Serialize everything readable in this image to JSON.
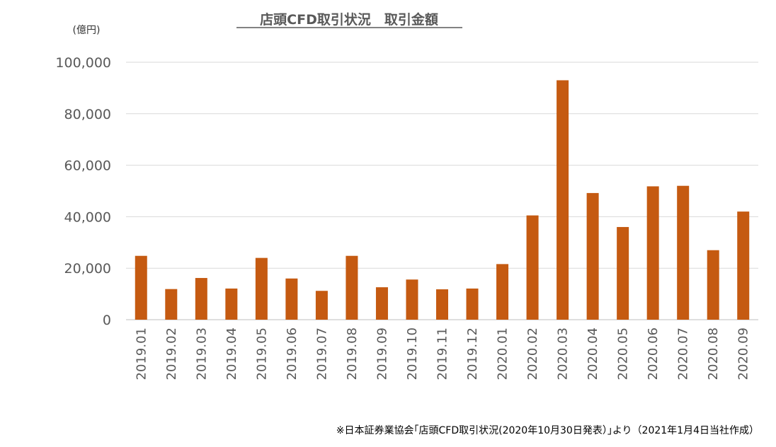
{
  "chart_data": {
    "type": "bar",
    "title": "店頭CFD取引状況　取引金額",
    "unit_label": "(億円)",
    "xlabel": "",
    "ylabel": "",
    "ylim": [
      0,
      100000
    ],
    "y_ticks": [
      "0",
      "20,000",
      "40,000",
      "60,000",
      "80,000",
      "100,000"
    ],
    "y_tick_values": [
      0,
      20000,
      40000,
      60000,
      80000,
      100000
    ],
    "grid": true,
    "legend": "none",
    "bar_color": "#c55a11",
    "categories": [
      "2019.01",
      "2019.02",
      "2019.03",
      "2019.04",
      "2019.05",
      "2019.06",
      "2019.07",
      "2019.08",
      "2019.09",
      "2019.10",
      "2019.11",
      "2019.12",
      "2020.01",
      "2020.02",
      "2020.03",
      "2020.04",
      "2020.05",
      "2020.06",
      "2020.07",
      "2020.08",
      "2020.09"
    ],
    "values": [
      24800,
      11900,
      16200,
      12100,
      24000,
      16000,
      11200,
      24800,
      12600,
      15600,
      11800,
      12100,
      21600,
      40500,
      93000,
      49200,
      36000,
      51800,
      52000,
      27000,
      42000
    ]
  },
  "footer": {
    "source": "※日本証券業協会｢店頭CFD取引状況(2020年10月30日発表）｣より（2021年1月4日当社作成）"
  }
}
